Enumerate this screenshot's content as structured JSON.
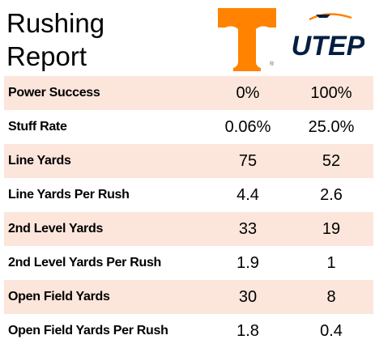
{
  "title": "Rushing Report",
  "teams": {
    "left": {
      "logo_icon": "tennessee-power-t-logo",
      "color": "#ff8200"
    },
    "right": {
      "logo_icon": "utep-logo",
      "name": "UTEP",
      "color": "#041e42"
    }
  },
  "colors": {
    "row_shade": "#fce6dc"
  },
  "rows": [
    {
      "label": "Power Success",
      "left": "0%",
      "right": "100%"
    },
    {
      "label": "Stuff Rate",
      "left": "0.06%",
      "right": "25.0%"
    },
    {
      "label": "Line Yards",
      "left": "75",
      "right": "52"
    },
    {
      "label": "Line Yards Per Rush",
      "left": "4.4",
      "right": "2.6"
    },
    {
      "label": "2nd Level Yards",
      "left": "33",
      "right": "19"
    },
    {
      "label": "2nd Level Yards Per Rush",
      "left": "1.9",
      "right": "1"
    },
    {
      "label": "Open Field Yards",
      "left": "30",
      "right": "8"
    },
    {
      "label": "Open Field Yards Per Rush",
      "left": "1.8",
      "right": "0.4"
    }
  ]
}
